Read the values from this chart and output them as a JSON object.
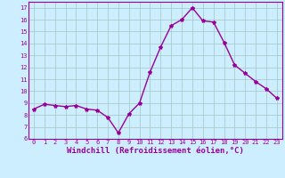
{
  "x": [
    0,
    1,
    2,
    3,
    4,
    5,
    6,
    7,
    8,
    9,
    10,
    11,
    12,
    13,
    14,
    15,
    16,
    17,
    18,
    19,
    20,
    21,
    22,
    23
  ],
  "y": [
    8.5,
    8.9,
    8.8,
    8.7,
    8.8,
    8.5,
    8.4,
    7.8,
    6.5,
    8.1,
    9.0,
    11.6,
    13.7,
    15.5,
    16.0,
    17.0,
    15.9,
    15.8,
    14.1,
    12.2,
    11.5,
    10.8,
    10.2,
    9.4
  ],
  "line_color": "#990099",
  "marker": "*",
  "marker_size": 3,
  "bg_color": "#cceeff",
  "grid_color": "#aacccc",
  "xlabel": "Windchill (Refroidissement éolien,°C)",
  "xlim": [
    -0.5,
    23.5
  ],
  "ylim": [
    6,
    17.5
  ],
  "yticks": [
    6,
    7,
    8,
    9,
    10,
    11,
    12,
    13,
    14,
    15,
    16,
    17
  ],
  "xticks": [
    0,
    1,
    2,
    3,
    4,
    5,
    6,
    7,
    8,
    9,
    10,
    11,
    12,
    13,
    14,
    15,
    16,
    17,
    18,
    19,
    20,
    21,
    22,
    23
  ],
  "tick_color": "#990099",
  "label_color": "#990099",
  "axis_color": "#990099",
  "line_width": 1.0,
  "tick_fontsize": 5.0,
  "xlabel_fontsize": 6.5
}
